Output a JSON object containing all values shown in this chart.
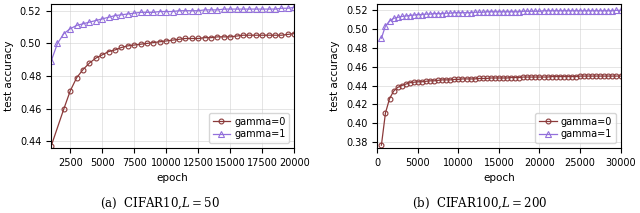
{
  "plot1": {
    "title": "(a)  CIFAR10,$L = 50$",
    "xlabel": "epoch",
    "ylabel": "test accuracy",
    "xlim": [
      1000,
      20000
    ],
    "ylim": [
      0.436,
      0.524
    ],
    "yticks": [
      0.44,
      0.46,
      0.48,
      0.5,
      0.52
    ],
    "xticks": [
      2500,
      5000,
      7500,
      10000,
      12500,
      15000,
      17500,
      20000
    ],
    "gamma0_x": [
      1000,
      2000,
      2500,
      3000,
      3500,
      4000,
      4500,
      5000,
      5500,
      6000,
      6500,
      7000,
      7500,
      8000,
      8500,
      9000,
      9500,
      10000,
      10500,
      11000,
      11500,
      12000,
      12500,
      13000,
      13500,
      14000,
      14500,
      15000,
      15500,
      16000,
      16500,
      17000,
      17500,
      18000,
      18500,
      19000,
      19500,
      20000
    ],
    "gamma0_y": [
      0.437,
      0.46,
      0.471,
      0.479,
      0.484,
      0.488,
      0.491,
      0.493,
      0.495,
      0.496,
      0.4975,
      0.4985,
      0.499,
      0.4995,
      0.5,
      0.5005,
      0.501,
      0.5015,
      0.502,
      0.5025,
      0.503,
      0.503,
      0.503,
      0.5035,
      0.5035,
      0.504,
      0.504,
      0.504,
      0.5045,
      0.505,
      0.505,
      0.505,
      0.505,
      0.505,
      0.505,
      0.505,
      0.5055,
      0.506
    ],
    "gamma1_x": [
      1000,
      1500,
      2000,
      2500,
      3000,
      3500,
      4000,
      4500,
      5000,
      5500,
      6000,
      6500,
      7000,
      7500,
      8000,
      8500,
      9000,
      9500,
      10000,
      10500,
      11000,
      11500,
      12000,
      12500,
      13000,
      13500,
      14000,
      14500,
      15000,
      15500,
      16000,
      16500,
      17000,
      17500,
      18000,
      18500,
      19000,
      19500,
      20000
    ],
    "gamma1_y": [
      0.489,
      0.5,
      0.506,
      0.509,
      0.511,
      0.512,
      0.513,
      0.514,
      0.515,
      0.516,
      0.517,
      0.5175,
      0.518,
      0.5185,
      0.519,
      0.519,
      0.519,
      0.5195,
      0.5195,
      0.5195,
      0.52,
      0.52,
      0.52,
      0.52,
      0.5205,
      0.5205,
      0.5205,
      0.521,
      0.521,
      0.521,
      0.521,
      0.521,
      0.521,
      0.521,
      0.521,
      0.521,
      0.5215,
      0.5215,
      0.522
    ],
    "color_gamma0": "#8B3A3A",
    "color_gamma1": "#9370DB",
    "legend_loc": "lower right"
  },
  "plot2": {
    "title": "(b)  CIFAR100,$L = 200$",
    "xlabel": "epoch",
    "ylabel": "test accuracy",
    "xlim": [
      0,
      30000
    ],
    "ylim": [
      0.374,
      0.526
    ],
    "yticks": [
      0.38,
      0.4,
      0.42,
      0.44,
      0.46,
      0.48,
      0.5,
      0.52
    ],
    "xticks": [
      0,
      5000,
      10000,
      15000,
      20000,
      25000,
      30000
    ],
    "gamma0_x": [
      500,
      1000,
      1500,
      2000,
      2500,
      3000,
      3500,
      4000,
      4500,
      5000,
      5500,
      6000,
      6500,
      7000,
      7500,
      8000,
      8500,
      9000,
      9500,
      10000,
      10500,
      11000,
      11500,
      12000,
      12500,
      13000,
      13500,
      14000,
      14500,
      15000,
      15500,
      16000,
      16500,
      17000,
      17500,
      18000,
      18500,
      19000,
      19500,
      20000,
      20500,
      21000,
      21500,
      22000,
      22500,
      23000,
      23500,
      24000,
      24500,
      25000,
      25500,
      26000,
      26500,
      27000,
      27500,
      28000,
      28500,
      29000,
      29500,
      30000
    ],
    "gamma0_y": [
      0.377,
      0.411,
      0.426,
      0.434,
      0.438,
      0.44,
      0.4415,
      0.443,
      0.4435,
      0.444,
      0.444,
      0.4445,
      0.445,
      0.445,
      0.4455,
      0.446,
      0.446,
      0.446,
      0.4465,
      0.4465,
      0.447,
      0.447,
      0.447,
      0.447,
      0.4475,
      0.4475,
      0.4475,
      0.448,
      0.448,
      0.448,
      0.448,
      0.448,
      0.4485,
      0.4485,
      0.4485,
      0.449,
      0.449,
      0.449,
      0.449,
      0.449,
      0.449,
      0.449,
      0.4495,
      0.4495,
      0.4495,
      0.4495,
      0.4495,
      0.4495,
      0.4495,
      0.45,
      0.45,
      0.45,
      0.45,
      0.45,
      0.45,
      0.45,
      0.45,
      0.45,
      0.45,
      0.45
    ],
    "gamma1_x": [
      500,
      1000,
      1500,
      2000,
      2500,
      3000,
      3500,
      4000,
      4500,
      5000,
      5500,
      6000,
      6500,
      7000,
      7500,
      8000,
      8500,
      9000,
      9500,
      10000,
      10500,
      11000,
      11500,
      12000,
      12500,
      13000,
      13500,
      14000,
      14500,
      15000,
      15500,
      16000,
      16500,
      17000,
      17500,
      18000,
      18500,
      19000,
      19500,
      20000,
      20500,
      21000,
      21500,
      22000,
      22500,
      23000,
      23500,
      24000,
      24500,
      25000,
      25500,
      26000,
      26500,
      27000,
      27500,
      28000,
      28500,
      29000,
      29500,
      30000
    ],
    "gamma1_y": [
      0.49,
      0.503,
      0.508,
      0.511,
      0.512,
      0.513,
      0.5135,
      0.514,
      0.5145,
      0.515,
      0.515,
      0.5155,
      0.5155,
      0.516,
      0.516,
      0.516,
      0.5165,
      0.5165,
      0.517,
      0.517,
      0.517,
      0.517,
      0.517,
      0.5175,
      0.5175,
      0.5175,
      0.518,
      0.518,
      0.518,
      0.518,
      0.518,
      0.518,
      0.518,
      0.518,
      0.518,
      0.5185,
      0.5185,
      0.5185,
      0.5185,
      0.5185,
      0.519,
      0.519,
      0.519,
      0.519,
      0.519,
      0.519,
      0.519,
      0.519,
      0.519,
      0.519,
      0.519,
      0.519,
      0.519,
      0.519,
      0.519,
      0.519,
      0.519,
      0.519,
      0.5195,
      0.5195
    ],
    "color_gamma0": "#8B3A3A",
    "color_gamma1": "#9370DB",
    "legend_loc": "lower right"
  },
  "fig_width": 6.4,
  "fig_height": 2.13
}
